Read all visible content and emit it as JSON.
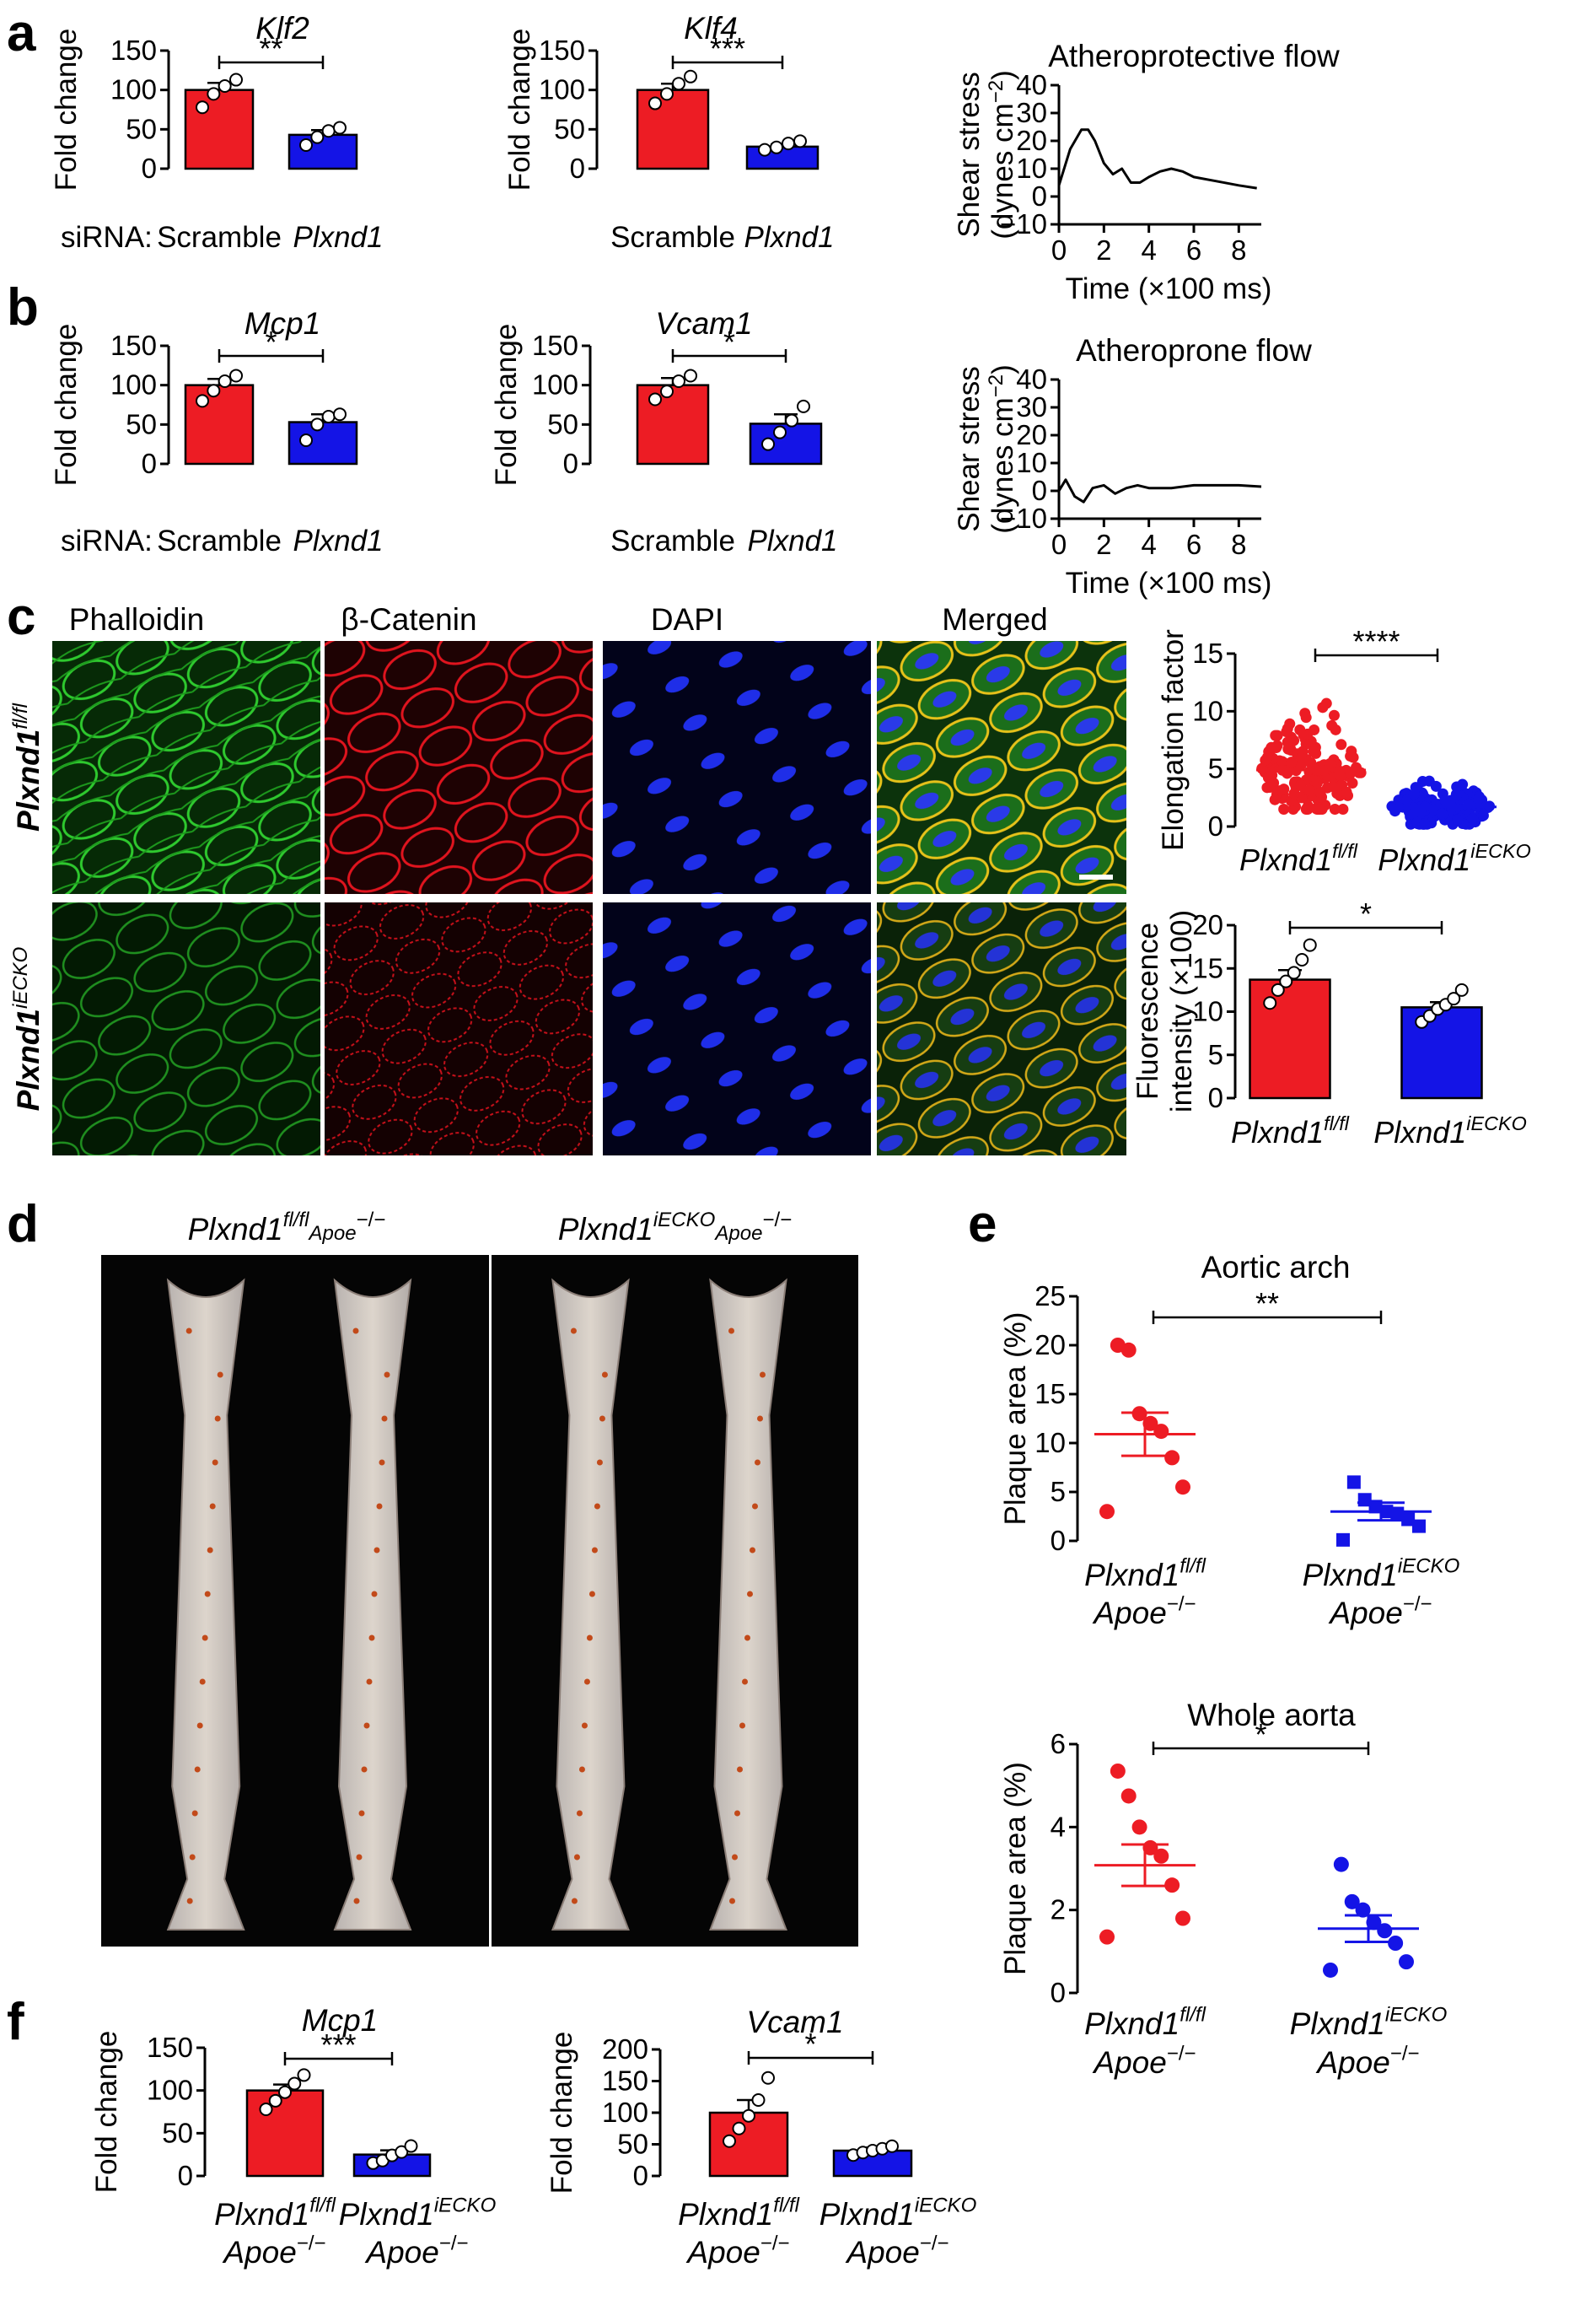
{
  "colors": {
    "red": "#ed1c24",
    "blue": "#1414e6",
    "black": "#000000",
    "phalloidin": "#1fa31f",
    "catenin": "#e0141e",
    "dapi": "#1f2ee8"
  },
  "panel_labels": {
    "a": "a",
    "b": "b",
    "c": "c",
    "d": "d",
    "e": "e",
    "f": "f"
  },
  "siRNA_label": "siRNA:",
  "chart_data": [
    {
      "id": "a1",
      "type": "bar",
      "title": "Klf2",
      "ylabel": "Fold change",
      "ylim": [
        0,
        150
      ],
      "yticks": [
        "0",
        "50",
        "100",
        "150"
      ],
      "categories": [
        "Scramble",
        "Plxnd1"
      ],
      "values": [
        100,
        43
      ],
      "errors": [
        9,
        6
      ],
      "points": [
        [
          78,
          95,
          105,
          113
        ],
        [
          30,
          40,
          48,
          52
        ]
      ],
      "sig": "**"
    },
    {
      "id": "a2",
      "type": "bar",
      "title": "Klf4",
      "ylabel": "Fold change",
      "ylim": [
        0,
        150
      ],
      "yticks": [
        "0",
        "50",
        "100",
        "150"
      ],
      "categories": [
        "Scramble",
        "Plxnd1"
      ],
      "values": [
        100,
        28
      ],
      "errors": [
        8,
        3
      ],
      "points": [
        [
          83,
          95,
          108,
          117
        ],
        [
          24,
          27,
          32,
          35
        ]
      ],
      "sig": "***"
    },
    {
      "id": "a3",
      "type": "line",
      "title": "Atheroprotective flow",
      "ylabel": "Shear stress",
      "ylabel2": "(dynes cm",
      "ylabel_sup": "−2",
      "ylabel_close": ")",
      "xlabel": "Time (×100 ms)",
      "xlim": [
        0,
        9
      ],
      "ylim": [
        -10,
        40
      ],
      "xticks": [
        "0",
        "2",
        "4",
        "6",
        "8"
      ],
      "yticks": [
        "−10",
        "0",
        "10",
        "20",
        "30",
        "40"
      ],
      "x": [
        0,
        0.5,
        1.0,
        1.3,
        1.6,
        2.0,
        2.4,
        2.8,
        3.2,
        3.6,
        4.0,
        4.5,
        5.0,
        5.5,
        6.0,
        7.0,
        8.0,
        8.8
      ],
      "y": [
        4,
        17,
        24,
        24,
        20,
        12,
        8,
        10,
        5,
        5,
        7,
        9,
        10,
        9,
        7,
        5.5,
        4,
        3
      ]
    },
    {
      "id": "b1",
      "type": "bar",
      "title": "Mcp1",
      "ylabel": "Fold change",
      "ylim": [
        0,
        150
      ],
      "yticks": [
        "0",
        "50",
        "100",
        "150"
      ],
      "categories": [
        "Scramble",
        "Plxnd1"
      ],
      "values": [
        100,
        53
      ],
      "errors": [
        8,
        10
      ],
      "points": [
        [
          80,
          93,
          105,
          112
        ],
        [
          30,
          50,
          60,
          63
        ]
      ],
      "sig": "*"
    },
    {
      "id": "b2",
      "type": "bar",
      "title": "Vcam1",
      "ylabel": "Fold change",
      "ylim": [
        0,
        150
      ],
      "yticks": [
        "0",
        "50",
        "100",
        "150"
      ],
      "categories": [
        "Scramble",
        "Plxnd1"
      ],
      "values": [
        100,
        51
      ],
      "errors": [
        9,
        12
      ],
      "points": [
        [
          82,
          92,
          105,
          112
        ],
        [
          25,
          40,
          55,
          73
        ]
      ],
      "sig": "*"
    },
    {
      "id": "b3",
      "type": "line",
      "title": "Atheroprone flow",
      "ylabel": "Shear stress",
      "ylabel2": "(dynes cm",
      "ylabel_sup": "−2",
      "ylabel_close": ")",
      "xlabel": "Time (×100 ms)",
      "xlim": [
        0,
        9
      ],
      "ylim": [
        -10,
        40
      ],
      "xticks": [
        "0",
        "2",
        "4",
        "6",
        "8"
      ],
      "yticks": [
        "−10",
        "0",
        "10",
        "20",
        "30",
        "40"
      ],
      "x": [
        0,
        0.3,
        0.7,
        1.1,
        1.5,
        2.0,
        2.5,
        3.0,
        3.5,
        4.0,
        5.0,
        6.0,
        7.0,
        8.0,
        9.0
      ],
      "y": [
        0,
        4,
        -2,
        -4,
        1,
        2,
        -1,
        1,
        2,
        1,
        1,
        2,
        2,
        2,
        1.5
      ]
    },
    {
      "id": "c1",
      "type": "scatter",
      "ylabel": "Elongation factor",
      "ylim": [
        0,
        15
      ],
      "yticks": [
        "0",
        "5",
        "10",
        "15"
      ],
      "categories": [
        "Plxnd1",
        "Plxnd1"
      ],
      "sups": [
        "fl/fl",
        "iECKO"
      ],
      "means": [
        4.9,
        1.7
      ],
      "ranges": [
        [
          1.5,
          11.3
        ],
        [
          0.2,
          4.2
        ]
      ],
      "sig": "****"
    },
    {
      "id": "c2",
      "type": "bar",
      "ylabel": "Fluorescence",
      "ylabel2": "intensity (×100)",
      "ylim": [
        0,
        20
      ],
      "yticks": [
        "0",
        "5",
        "10",
        "15",
        "20"
      ],
      "categories": [
        "Plxnd1",
        "Plxnd1"
      ],
      "sups": [
        "fl/fl",
        "iECKO"
      ],
      "values": [
        13.7,
        10.5
      ],
      "errors": [
        1.1,
        0.6
      ],
      "points": [
        [
          11,
          12.5,
          13.5,
          14.5,
          16,
          17.7
        ],
        [
          8.8,
          9.5,
          10.3,
          10.8,
          11.5,
          12.5
        ]
      ],
      "sig": "*"
    },
    {
      "id": "e1",
      "type": "scatter",
      "title": "Aortic arch",
      "ylabel": "Plaque area (%)",
      "ylim": [
        0,
        25
      ],
      "yticks": [
        "0",
        "5",
        "10",
        "15",
        "20",
        "25"
      ],
      "categories": [
        "Plxnd1",
        "Plxnd1"
      ],
      "sups": [
        "fl/fl",
        "iECKO"
      ],
      "sub": [
        "Apoe",
        "Apoe"
      ],
      "subsup": "−/−",
      "means": [
        10.9,
        3.0
      ],
      "errors": [
        2.2,
        0.9
      ],
      "points": [
        [
          3.0,
          5.5,
          8.5,
          11.2,
          12,
          13.0,
          19.5,
          20
        ],
        [
          0.1,
          1.5,
          2.2,
          2.8,
          3.0,
          3.5,
          4.2,
          6.0
        ]
      ],
      "sig": "**"
    },
    {
      "id": "e2",
      "type": "scatter",
      "title": "Whole aorta",
      "ylabel": "Plaque area (%)",
      "ylim": [
        0,
        6
      ],
      "yticks": [
        "0",
        "2",
        "4",
        "6"
      ],
      "categories": [
        "Plxnd1",
        "Plxnd1"
      ],
      "sups": [
        "fl/fl",
        "iECKO"
      ],
      "sub": [
        "Apoe",
        "Apoe"
      ],
      "subsup": "−/−",
      "means": [
        3.08,
        1.55
      ],
      "errors": [
        0.5,
        0.32
      ],
      "points": [
        [
          1.35,
          1.8,
          2.6,
          3.3,
          3.5,
          4.0,
          4.75,
          5.35
        ],
        [
          0.55,
          0.75,
          1.2,
          1.5,
          1.7,
          2.0,
          2.2,
          3.1
        ]
      ],
      "sig": "*"
    },
    {
      "id": "f1",
      "type": "bar",
      "title": "Mcp1",
      "ylabel": "Fold change",
      "ylim": [
        0,
        150
      ],
      "yticks": [
        "0",
        "50",
        "100",
        "150"
      ],
      "categories": [
        "Plxnd1",
        "Plxnd1"
      ],
      "sups": [
        "fl/fl",
        "iECKO"
      ],
      "sub": [
        "Apoe",
        "Apoe"
      ],
      "subsup": "−/−",
      "values": [
        100,
        25
      ],
      "errors": [
        7,
        5
      ],
      "points": [
        [
          78,
          88,
          98,
          108,
          118
        ],
        [
          15,
          18,
          24,
          28,
          35
        ]
      ],
      "sig": "***"
    },
    {
      "id": "f2",
      "type": "bar",
      "title": "Vcam1",
      "ylabel": "Fold change",
      "ylim": [
        0,
        200
      ],
      "yticks": [
        "0",
        "50",
        "100",
        "150",
        "200"
      ],
      "categories": [
        "Plxnd1",
        "Plxnd1"
      ],
      "sups": [
        "fl/fl",
        "iECKO"
      ],
      "sub": [
        "Apoe",
        "Apoe"
      ],
      "subsup": "−/−",
      "values": [
        100,
        40
      ],
      "errors": [
        20,
        5
      ],
      "points": [
        [
          55,
          75,
          95,
          120,
          155
        ],
        [
          33,
          37,
          40,
          43,
          47
        ]
      ],
      "sig": "*"
    }
  ],
  "micrographs": {
    "headers": [
      "Phalloidin",
      "β-Catenin",
      "DAPI",
      "Merged"
    ],
    "row_labels": [
      {
        "text": "Plxnd1",
        "sup": "fl/fl"
      },
      {
        "text": "Plxnd1",
        "sup": "iECKO"
      }
    ]
  },
  "aorta_photos": {
    "labels": [
      {
        "text": "Plxnd1",
        "sup": "fl/fl",
        "suffix": "Apoe",
        "suffix_sup": "−/−"
      },
      {
        "text": "Plxnd1",
        "sup": "iECKO",
        "suffix": "Apoe",
        "suffix_sup": "−/−"
      }
    ]
  }
}
